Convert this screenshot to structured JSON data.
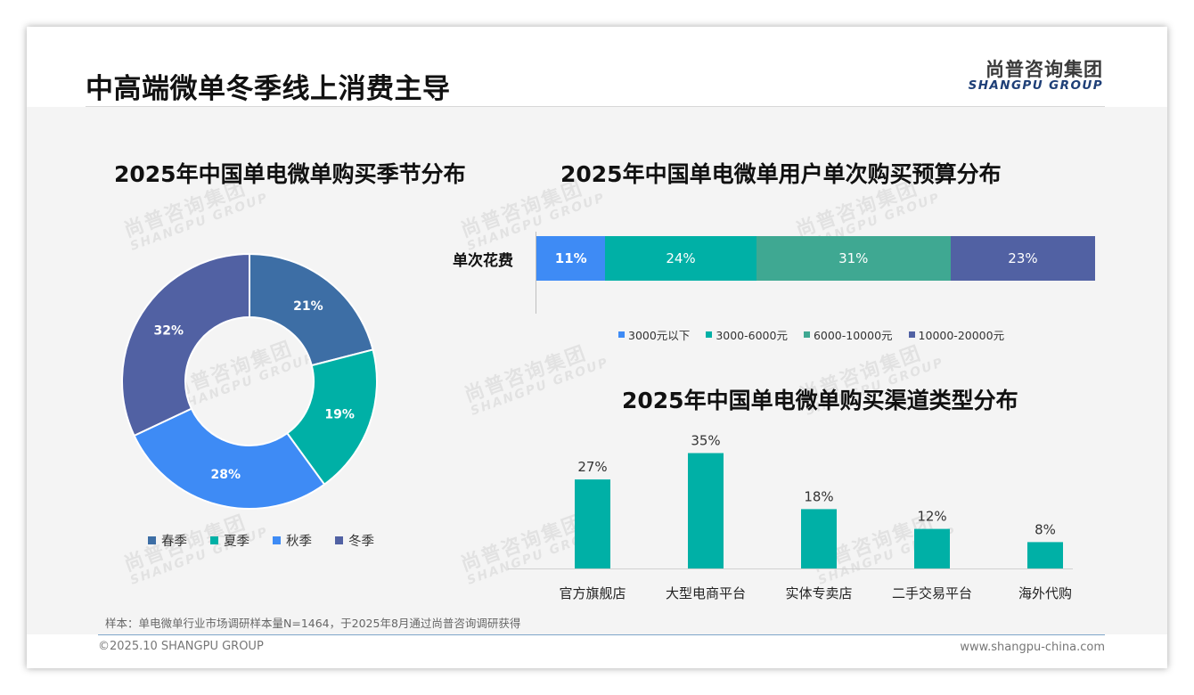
{
  "header": {
    "title": "中高端微单冬季线上消费主导",
    "logo_cn": "尚普咨询集团",
    "logo_en": "SHANGPU GROUP"
  },
  "watermark": {
    "cn": "尚普咨询集团",
    "en": "SHANGPU GROUP"
  },
  "colors": {
    "spring": "#3d6ea5",
    "summer": "#00b0a6",
    "autumn": "#3e8bf5",
    "winter": "#5161a3",
    "budget_1": "#3e8bf5",
    "budget_2": "#00b0a6",
    "budget_3": "#3fa892",
    "budget_4": "#5161a3",
    "channel_bar": "#00b0a6"
  },
  "chart_data": [
    {
      "type": "pie",
      "title": "2025年中国单电微单购买季节分布",
      "categories": [
        "春季",
        "夏季",
        "秋季",
        "冬季"
      ],
      "values": [
        21,
        19,
        28,
        32
      ],
      "value_labels": [
        "21%",
        "19%",
        "28%",
        "32%"
      ],
      "donut": true,
      "legend": "bottom"
    },
    {
      "type": "bar",
      "orientation": "horizontal-stacked",
      "title": "2025年中国单电微单用户单次购买预算分布",
      "categories": [
        "单次花费"
      ],
      "series": [
        {
          "name": "3000元以下",
          "values": [
            11
          ],
          "label": "11%"
        },
        {
          "name": "3000-6000元",
          "values": [
            24
          ],
          "label": "24%"
        },
        {
          "name": "6000-10000元",
          "values": [
            31
          ],
          "label": "31%"
        },
        {
          "name": "10000-20000元",
          "values": [
            23
          ],
          "label": "23%"
        }
      ],
      "legend": "bottom"
    },
    {
      "type": "bar",
      "title": "2025年中国单电微单购买渠道类型分布",
      "categories": [
        "官方旗舰店",
        "大型电商平台",
        "实体专卖店",
        "二手交易平台",
        "海外代购"
      ],
      "values": [
        27,
        35,
        18,
        12,
        8
      ],
      "value_labels": [
        "27%",
        "35%",
        "18%",
        "12%",
        "8%"
      ],
      "ylim": [
        0,
        40
      ]
    }
  ],
  "footer": {
    "sample": "样本：单电微单行业市场调研样本量N=1464，于2025年8月通过尚普咨询调研获得",
    "copyright": "©2025.10 SHANGPU GROUP",
    "website": "www.shangpu-china.com"
  }
}
